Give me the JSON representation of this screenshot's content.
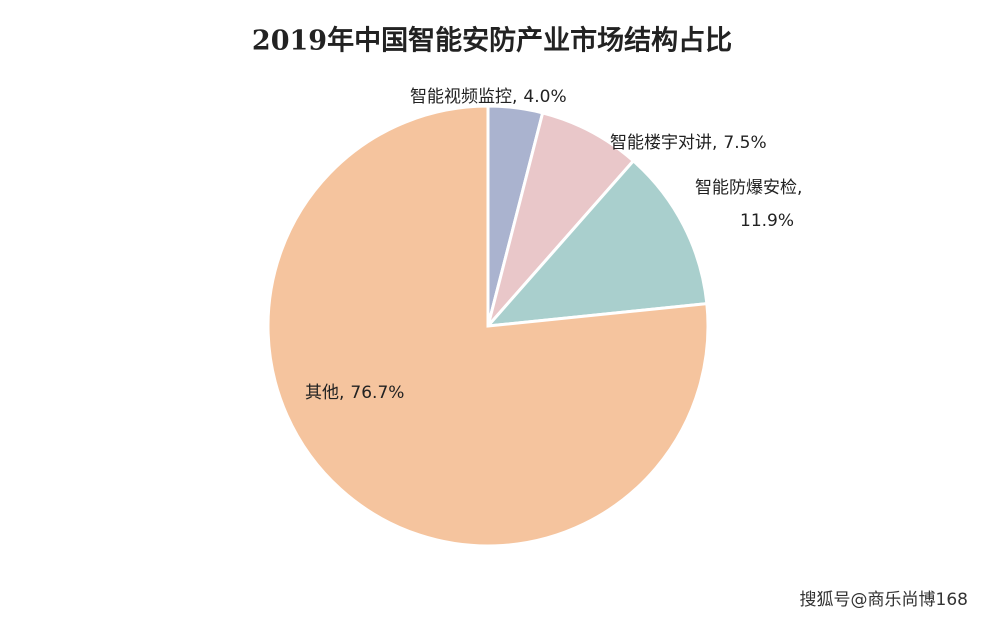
{
  "chart_data": {
    "type": "pie",
    "title": "2019年中国智能安防产业市场结构占比",
    "categories": [
      "智能视频监控,",
      "智能楼宇对讲,",
      "智能防爆安检,",
      "其他,"
    ],
    "values": [
      4.0,
      7.5,
      11.9,
      76.7
    ],
    "value_labels": [
      "4.0%",
      "7.5%",
      "11.9%",
      "76.7%"
    ],
    "colors": [
      "#aab3cf",
      "#e9c7c9",
      "#a9cfcd",
      "#f5c49e"
    ],
    "start_angle": 0,
    "direction": "clockwise"
  },
  "watermark": "搜狐号@商乐尚博168"
}
